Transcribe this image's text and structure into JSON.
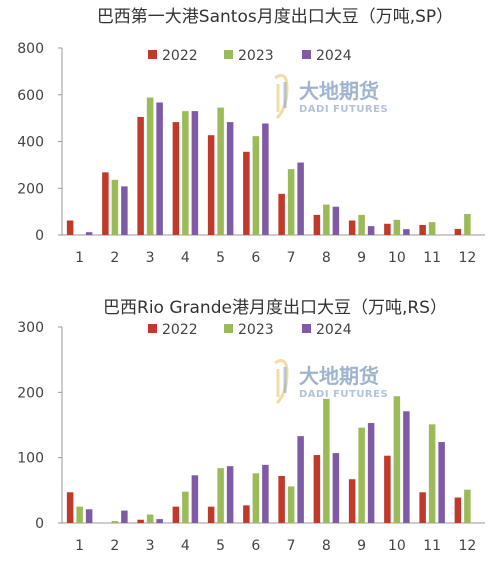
{
  "watermark": {
    "cn": "大地期货",
    "en": "DADI FUTURES"
  },
  "colors": {
    "2022": "#c0392b",
    "2023": "#9bbb59",
    "2024": "#7f5ba6"
  },
  "chart_data": [
    {
      "type": "bar",
      "title": "巴西第一大港Santos月度出口大豆（万吨,SP）",
      "categories": [
        "1",
        "2",
        "3",
        "4",
        "5",
        "6",
        "7",
        "8",
        "9",
        "10",
        "11",
        "12"
      ],
      "ylim": [
        0,
        800
      ],
      "yticks": [
        0,
        200,
        400,
        600,
        800
      ],
      "grid": false,
      "legend": "top-center",
      "series": [
        {
          "name": "2022",
          "values": [
            62,
            268,
            505,
            483,
            427,
            356,
            176,
            86,
            62,
            48,
            43,
            26
          ]
        },
        {
          "name": "2023",
          "values": [
            0,
            236,
            588,
            530,
            545,
            423,
            282,
            130,
            86,
            65,
            55,
            90
          ]
        },
        {
          "name": "2024",
          "values": [
            12,
            208,
            567,
            530,
            483,
            477,
            310,
            121,
            38,
            25,
            0,
            0
          ]
        }
      ]
    },
    {
      "type": "bar",
      "title": "巴西Rio Grande港月度出口大豆（万吨,RS）",
      "categories": [
        "1",
        "2",
        "3",
        "4",
        "5",
        "6",
        "7",
        "8",
        "9",
        "10",
        "11",
        "12"
      ],
      "ylim": [
        0,
        300
      ],
      "yticks": [
        0,
        100,
        200,
        300
      ],
      "grid": false,
      "legend": "top-center",
      "series": [
        {
          "name": "2022",
          "values": [
            47,
            0,
            5,
            25,
            25,
            27,
            72,
            104,
            67,
            103,
            47,
            39
          ]
        },
        {
          "name": "2023",
          "values": [
            25,
            3,
            13,
            48,
            84,
            76,
            56,
            190,
            146,
            194,
            151,
            51
          ]
        },
        {
          "name": "2024",
          "values": [
            21,
            19,
            6,
            73,
            87,
            89,
            133,
            107,
            153,
            171,
            124,
            0
          ]
        }
      ]
    }
  ]
}
